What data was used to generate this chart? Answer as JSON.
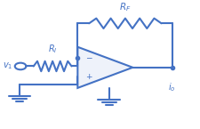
{
  "color": "#4472c4",
  "bg_color": "#ffffff",
  "line_width": 1.5,
  "v1_label": "$v_1$",
  "ri_label": "$R_I$",
  "rf_label": "$R_F$",
  "io_label": "$i_o$",
  "minus_label": "−",
  "plus_label": "+",
  "opamp_fill": "#eef2fa",
  "fig_w": 2.26,
  "fig_h": 1.45,
  "dpi": 100
}
